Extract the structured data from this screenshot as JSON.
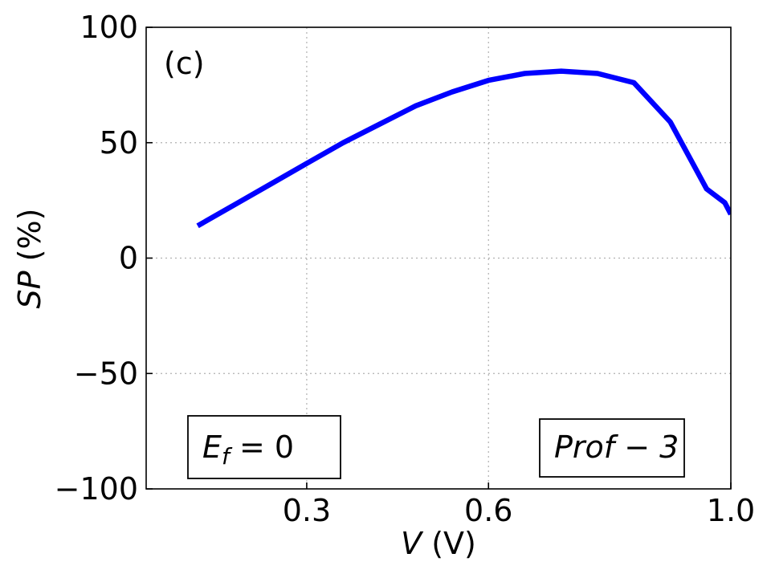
{
  "chart_data": {
    "type": "line",
    "panel_label": "(c)",
    "xlabel": {
      "var": "V",
      "unit": " (V)"
    },
    "ylabel": {
      "var": "SP",
      "unit": " (%)"
    },
    "xlim": [
      0.035,
      1.0
    ],
    "ylim": [
      -100,
      100
    ],
    "x_ticks": [
      0.3,
      0.6,
      1.0
    ],
    "x_tick_labels": [
      "0.3",
      "0.6",
      "1.0"
    ],
    "y_ticks": [
      100,
      50,
      0,
      -50,
      -100
    ],
    "y_tick_labels": [
      "100",
      "50",
      "0",
      "−50",
      "−100"
    ],
    "grid": true,
    "line_color": "#0000ff",
    "series": [
      {
        "x": [
          0.12,
          0.18,
          0.24,
          0.3,
          0.36,
          0.42,
          0.48,
          0.54,
          0.6,
          0.66,
          0.72,
          0.78,
          0.84,
          0.9,
          0.96,
          0.99,
          1.0
        ],
        "y": [
          14,
          23,
          32,
          41,
          50,
          58,
          66,
          72,
          77,
          80,
          81,
          80,
          76,
          59,
          30,
          24,
          19
        ]
      }
    ],
    "annotations": {
      "ef_box": {
        "var": "E",
        "sub": "f",
        "rest": " = 0"
      },
      "prof_box": {
        "text": "Prof − 3"
      }
    }
  }
}
